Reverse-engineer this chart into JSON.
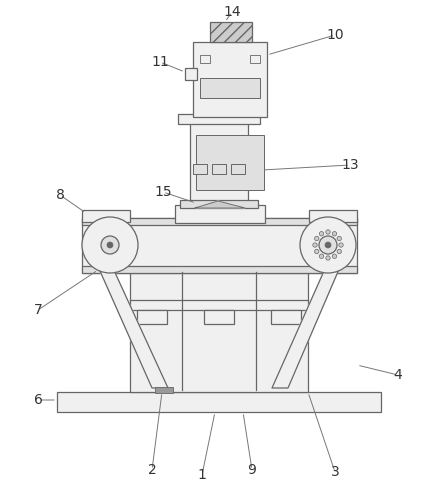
{
  "background_color": "#ffffff",
  "line_color": "#666666",
  "fill_light": "#f0f0f0",
  "fill_mid": "#e0e0e0",
  "fill_dark": "#cccccc",
  "label_fontsize": 10,
  "label_color": "#333333"
}
